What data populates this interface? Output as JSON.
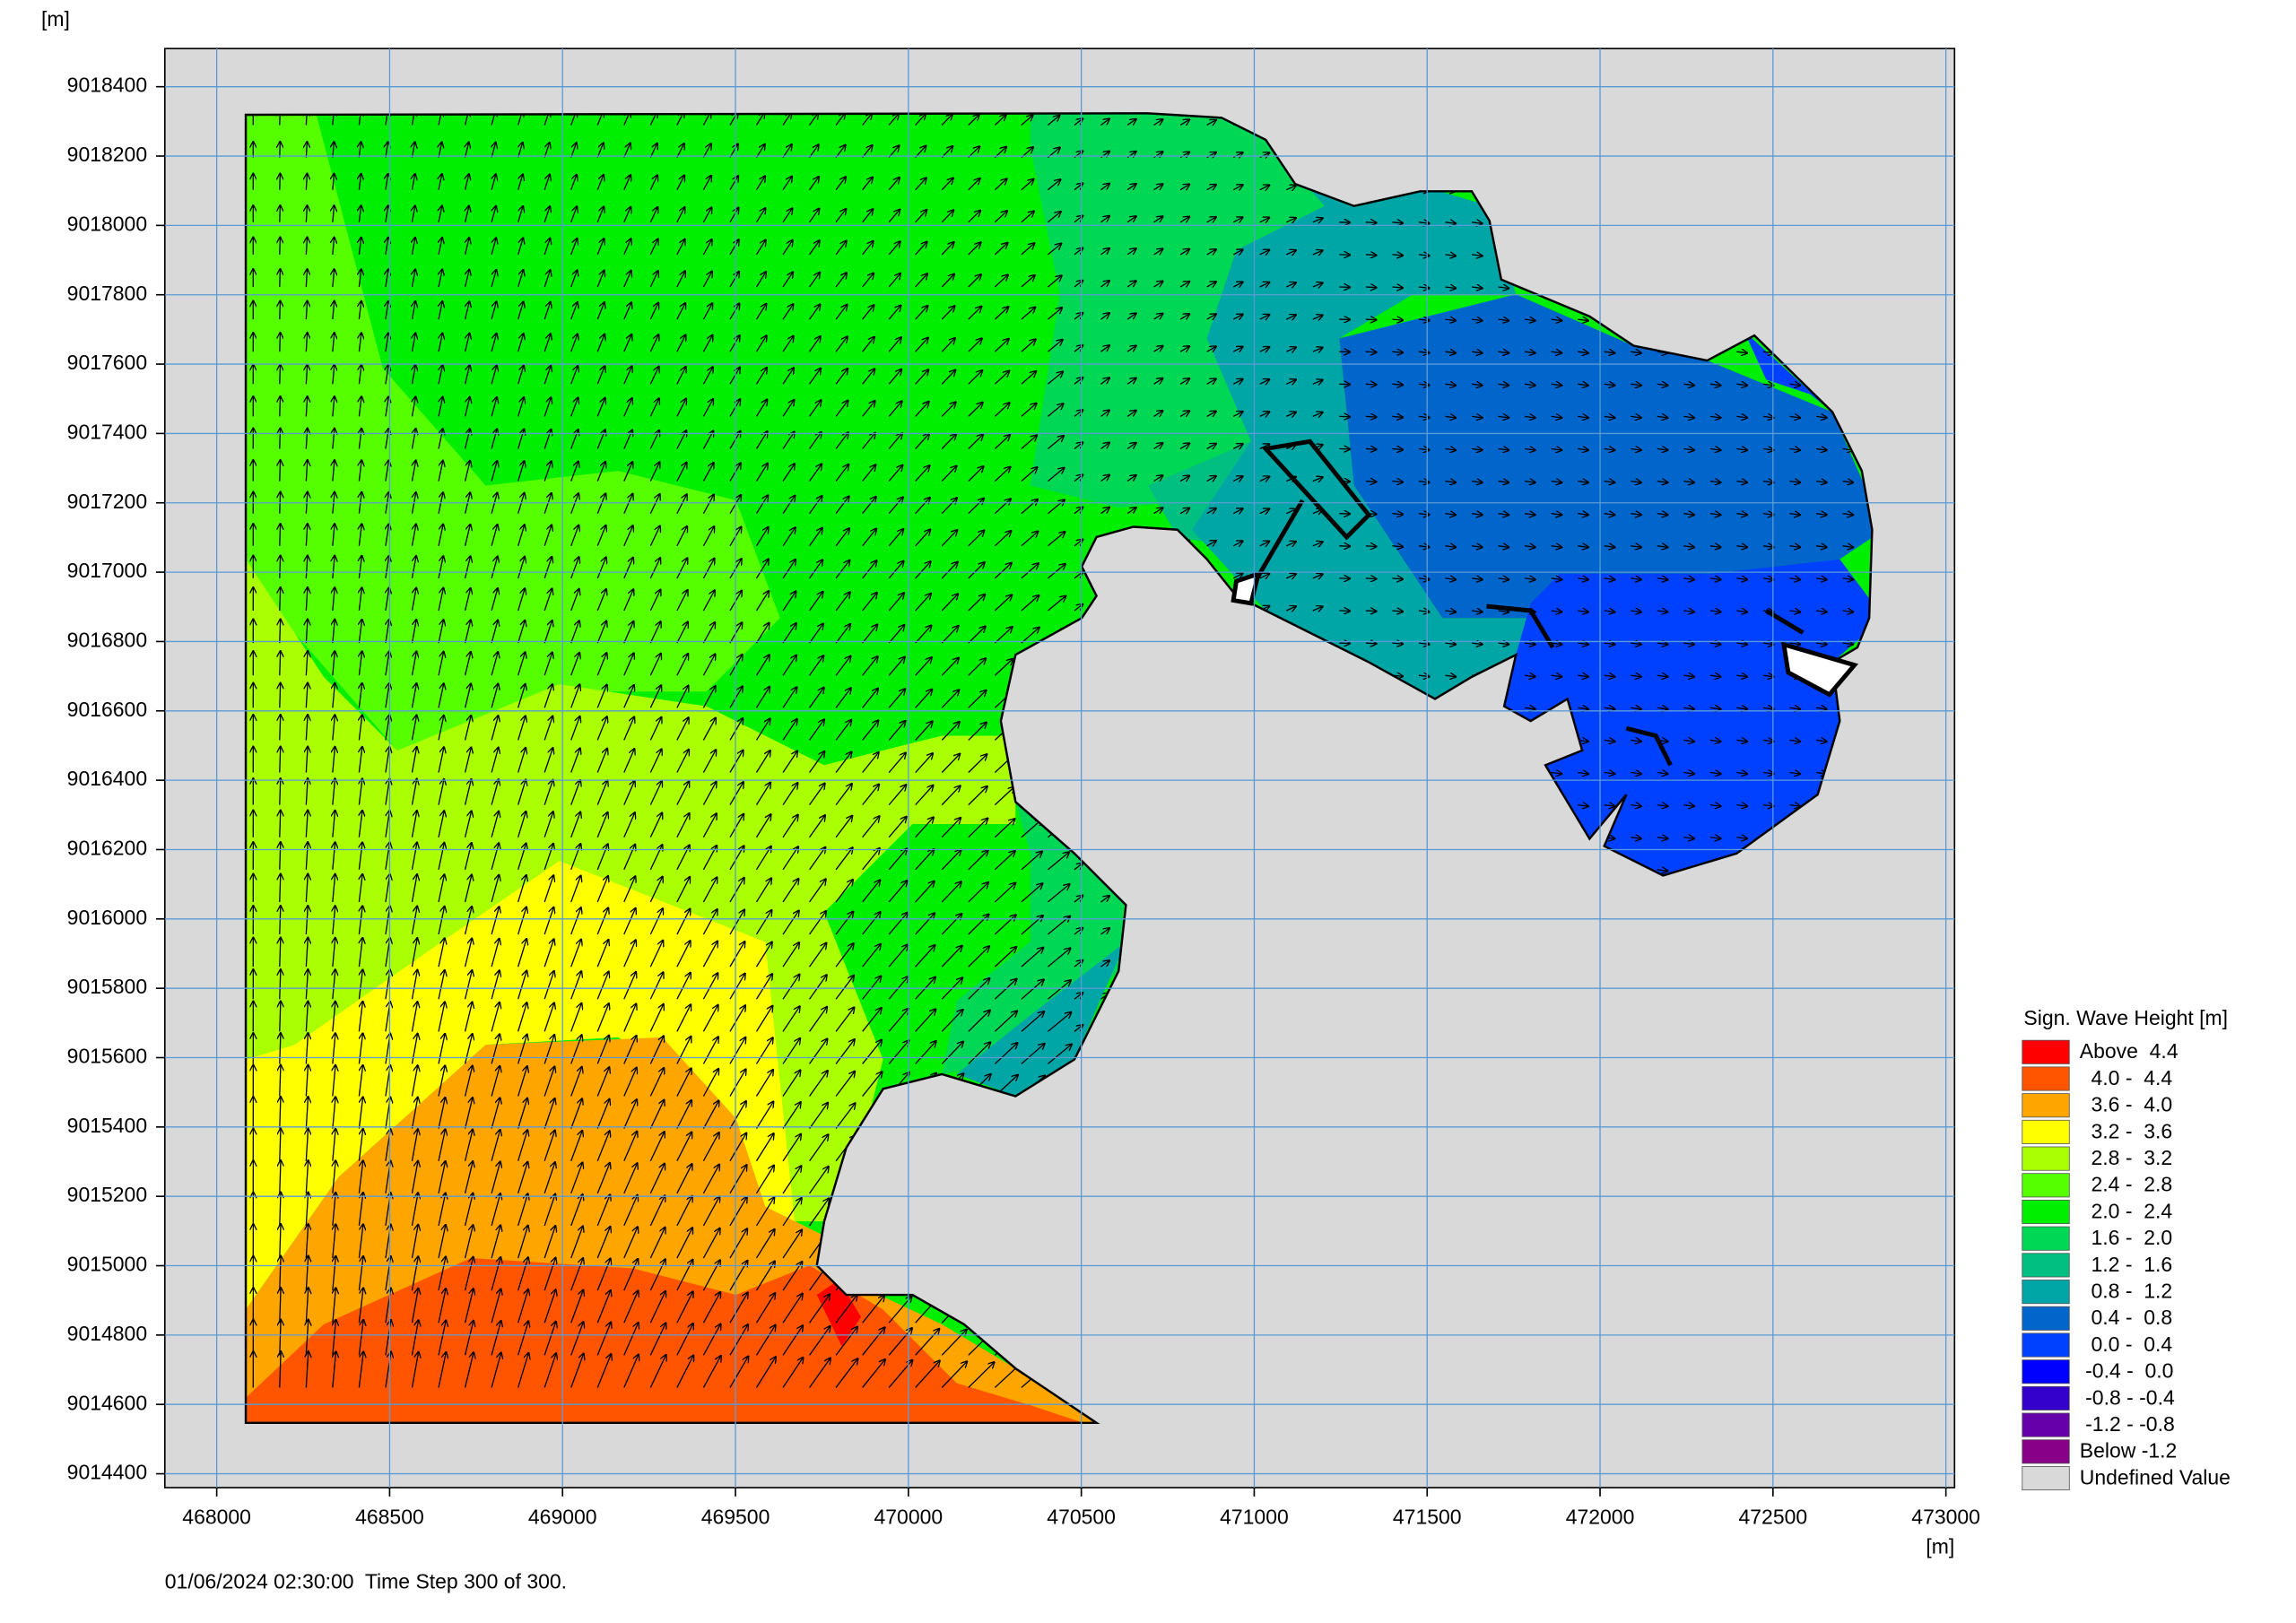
{
  "chart_data": {
    "type": "contour",
    "y_label": "[m]",
    "x_label": "[m]",
    "xlim": [
      467850,
      473025
    ],
    "ylim": [
      9014360,
      9018510
    ],
    "xticks": [
      468000,
      468500,
      469000,
      469500,
      470000,
      470500,
      471000,
      471500,
      472000,
      472500,
      473000
    ],
    "yticks": [
      9014400,
      9014600,
      9014800,
      9015000,
      9015200,
      9015400,
      9015600,
      9015800,
      9016000,
      9016200,
      9016400,
      9016600,
      9016800,
      9017000,
      9017200,
      9017400,
      9017600,
      9017800,
      9018000,
      9018200,
      9018400
    ],
    "grid": true,
    "legend": {
      "title": "Sign. Wave Height [m]",
      "items": [
        {
          "label": "Above  4.4",
          "color": "#ff0000"
        },
        {
          "label": "  4.0 -  4.4",
          "color": "#ff5500"
        },
        {
          "label": "  3.6 -  4.0",
          "color": "#ffa500"
        },
        {
          "label": "  3.2 -  3.6",
          "color": "#ffff00"
        },
        {
          "label": "  2.8 -  3.2",
          "color": "#aaff00"
        },
        {
          "label": "  2.4 -  2.8",
          "color": "#55ff00"
        },
        {
          "label": "  2.0 -  2.4",
          "color": "#00ee00"
        },
        {
          "label": "  1.6 -  2.0",
          "color": "#00d855"
        },
        {
          "label": "  1.2 -  1.6",
          "color": "#00bf80"
        },
        {
          "label": "  0.8 -  1.2",
          "color": "#00a5a5"
        },
        {
          "label": "  0.4 -  0.8",
          "color": "#0066cc"
        },
        {
          "label": "  0.0 -  0.4",
          "color": "#0040ff"
        },
        {
          "label": " -0.4 -  0.0",
          "color": "#0000ff"
        },
        {
          "label": " -0.8 - -0.4",
          "color": "#3300cc"
        },
        {
          "label": " -1.2 - -0.8",
          "color": "#6600aa"
        },
        {
          "label": "Below -1.2",
          "color": "#880088"
        },
        {
          "label": "Undefined Value",
          "color": "#d9d9d9"
        }
      ]
    },
    "footer": "01/06/2024 02:30:00  Time Step 300 of 300."
  }
}
